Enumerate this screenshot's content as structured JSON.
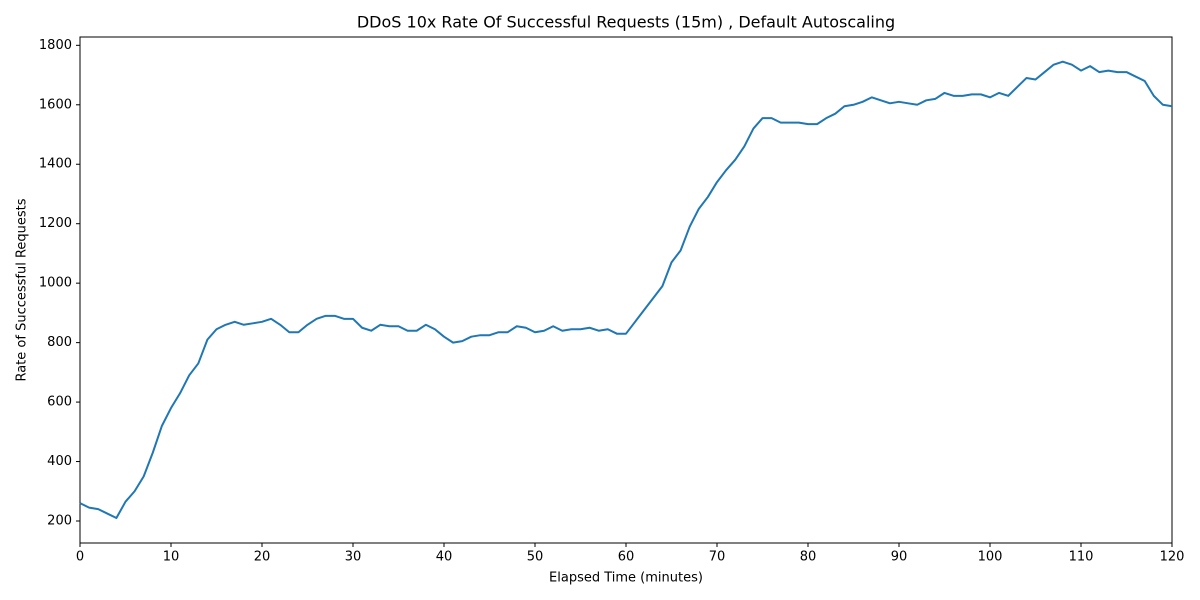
{
  "chart_data": {
    "type": "line",
    "title": "DDoS 10x Rate Of Successful Requests (15m) , Default Autoscaling",
    "x_label": "Elapsed Time (minutes)",
    "y_label": "Rate of Successful Requests",
    "x": [
      0,
      1,
      2,
      3,
      4,
      5,
      6,
      7,
      8,
      9,
      10,
      11,
      12,
      13,
      14,
      15,
      16,
      17,
      18,
      19,
      20,
      21,
      22,
      23,
      24,
      25,
      26,
      27,
      28,
      29,
      30,
      31,
      32,
      33,
      34,
      35,
      36,
      37,
      38,
      39,
      40,
      41,
      42,
      43,
      44,
      45,
      46,
      47,
      48,
      49,
      50,
      51,
      52,
      53,
      54,
      55,
      56,
      57,
      58,
      59,
      60,
      61,
      62,
      63,
      64,
      65,
      66,
      67,
      68,
      69,
      70,
      71,
      72,
      73,
      74,
      75,
      76,
      77,
      78,
      79,
      80,
      81,
      82,
      83,
      84,
      85,
      86,
      87,
      88,
      89,
      90,
      91,
      92,
      93,
      94,
      95,
      96,
      97,
      98,
      99,
      100,
      101,
      102,
      103,
      104,
      105,
      106,
      107,
      108,
      109,
      110,
      111,
      112,
      113,
      114,
      115,
      116,
      117,
      118,
      119,
      120
    ],
    "series": [
      {
        "name": "Rate of Successful Requests",
        "color": "#1f77b4",
        "values": [
          260,
          245,
          240,
          225,
          210,
          265,
          300,
          350,
          430,
          520,
          580,
          630,
          690,
          730,
          810,
          845,
          860,
          870,
          860,
          865,
          870,
          880,
          860,
          835,
          835,
          860,
          880,
          890,
          890,
          880,
          880,
          850,
          840,
          860,
          855,
          855,
          840,
          840,
          860,
          845,
          820,
          800,
          805,
          820,
          825,
          825,
          835,
          835,
          855,
          850,
          835,
          840,
          855,
          840,
          845,
          845,
          850,
          840,
          845,
          830,
          830,
          870,
          910,
          950,
          990,
          1070,
          1110,
          1190,
          1250,
          1290,
          1340,
          1380,
          1415,
          1460,
          1520,
          1555,
          1555,
          1540,
          1540,
          1540,
          1535,
          1535,
          1555,
          1570,
          1595,
          1600,
          1610,
          1625,
          1615,
          1605,
          1610,
          1605,
          1600,
          1615,
          1620,
          1640,
          1630,
          1630,
          1635,
          1635,
          1625,
          1640,
          1630,
          1660,
          1690,
          1685,
          1710,
          1735,
          1745,
          1735,
          1715,
          1730,
          1710,
          1715,
          1710,
          1710,
          1695,
          1680,
          1630,
          1600,
          1595
        ]
      }
    ],
    "xlim": [
      0,
      120
    ],
    "xticks": [
      0,
      10,
      20,
      30,
      40,
      50,
      60,
      70,
      80,
      90,
      100,
      110,
      120
    ],
    "ylim": [
      126,
      1828
    ],
    "yticks": [
      200,
      400,
      600,
      800,
      1000,
      1200,
      1400,
      1600,
      1800
    ],
    "grid": false
  }
}
